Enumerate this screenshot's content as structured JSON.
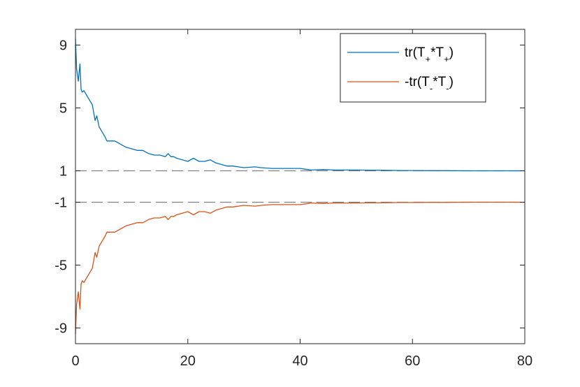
{
  "chart_data": {
    "type": "line",
    "title": "",
    "xlabel": "",
    "ylabel": "",
    "xlim": [
      0,
      80
    ],
    "ylim": [
      -10,
      10
    ],
    "xticks": [
      "0",
      "20",
      "40",
      "60",
      "80"
    ],
    "yticks": [
      {
        "value": 9,
        "label": "9"
      },
      {
        "value": 5,
        "label": "5"
      },
      {
        "value": 1,
        "label": "1"
      },
      {
        "value": -1,
        "label": "-1"
      },
      {
        "value": -5,
        "label": "-5"
      },
      {
        "value": -9,
        "label": "-9"
      }
    ],
    "grid": false,
    "legend_position": "top-right",
    "reference_lines": [
      {
        "y": 1,
        "style": "dashed",
        "color": "#808080"
      },
      {
        "y": -1,
        "style": "dashed",
        "color": "#808080"
      }
    ],
    "series": [
      {
        "name": "tr(T+*T+)",
        "legend": {
          "pre": "tr(T",
          "sub1": "+",
          "mid": "*T",
          "sub2": "+",
          "post": ")"
        },
        "color": "#0072BD",
        "x": [
          0,
          0.2,
          0.5,
          0.8,
          1.0,
          1.2,
          1.5,
          2,
          2.5,
          3,
          3.5,
          3.8,
          4.2,
          4.7,
          5.2,
          5.6,
          6,
          7,
          8,
          9,
          10,
          11,
          12,
          13,
          14,
          15,
          16,
          16.5,
          17,
          17.5,
          18,
          19,
          20,
          21,
          22,
          23,
          24,
          25,
          26,
          27,
          28,
          30,
          32,
          33,
          35,
          37,
          40,
          41,
          42,
          44,
          46,
          48,
          50,
          52,
          55,
          58,
          60,
          63,
          66,
          70,
          75,
          80
        ],
        "y": [
          9.4,
          7.5,
          6.7,
          7.8,
          6.2,
          6.0,
          6.1,
          5.8,
          5.5,
          5.2,
          4.2,
          4.5,
          3.8,
          3.5,
          3.2,
          2.9,
          2.9,
          2.9,
          2.7,
          2.5,
          2.4,
          2.3,
          2.3,
          2.1,
          2.0,
          2.0,
          1.9,
          2.1,
          1.9,
          1.9,
          1.8,
          1.7,
          1.6,
          1.8,
          1.6,
          1.6,
          1.7,
          1.5,
          1.4,
          1.3,
          1.3,
          1.2,
          1.25,
          1.2,
          1.15,
          1.15,
          1.15,
          1.1,
          1.05,
          1.08,
          1.05,
          1.05,
          1.05,
          1.04,
          1.03,
          1.02,
          1.02,
          1.01,
          1.01,
          1.0,
          1.0,
          1.0
        ]
      },
      {
        "name": "-tr(T-*T-)",
        "legend": {
          "pre": "-tr(T",
          "sub1": "-",
          "mid": "*T",
          "sub2": "-",
          "post": ")"
        },
        "color": "#D95319",
        "x": [
          0,
          0.2,
          0.5,
          0.8,
          1.0,
          1.2,
          1.5,
          2,
          2.5,
          3,
          3.5,
          3.8,
          4.2,
          4.7,
          5.2,
          5.6,
          6,
          7,
          8,
          9,
          10,
          11,
          12,
          13,
          14,
          15,
          16,
          16.5,
          17,
          17.5,
          18,
          19,
          20,
          21,
          22,
          23,
          24,
          25,
          26,
          27,
          28,
          30,
          32,
          33,
          35,
          37,
          40,
          41,
          42,
          44,
          46,
          48,
          50,
          52,
          55,
          58,
          60,
          63,
          66,
          70,
          75,
          80
        ],
        "y": [
          -9.4,
          -7.5,
          -6.7,
          -7.8,
          -6.2,
          -6.0,
          -6.1,
          -5.8,
          -5.5,
          -5.2,
          -4.2,
          -4.5,
          -3.8,
          -3.5,
          -3.2,
          -2.9,
          -2.9,
          -2.9,
          -2.7,
          -2.5,
          -2.4,
          -2.3,
          -2.3,
          -2.1,
          -2.0,
          -2.0,
          -1.9,
          -2.1,
          -1.9,
          -1.9,
          -1.8,
          -1.7,
          -1.6,
          -1.8,
          -1.6,
          -1.6,
          -1.7,
          -1.5,
          -1.4,
          -1.3,
          -1.3,
          -1.2,
          -1.25,
          -1.2,
          -1.15,
          -1.15,
          -1.15,
          -1.1,
          -1.05,
          -1.08,
          -1.05,
          -1.05,
          -1.05,
          -1.04,
          -1.03,
          -1.02,
          -1.02,
          -1.01,
          -1.01,
          -1.0,
          -1.0,
          -1.0
        ]
      }
    ]
  }
}
